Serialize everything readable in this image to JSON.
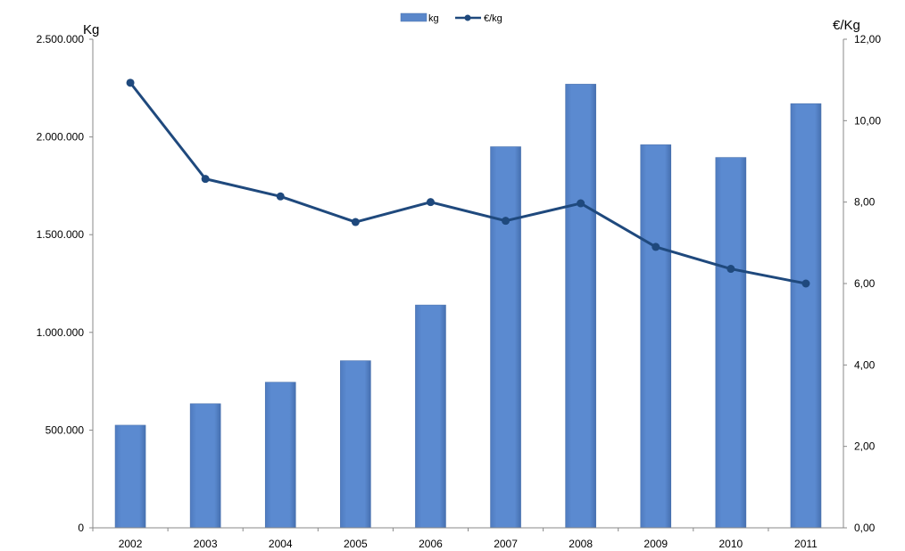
{
  "chart_data": {
    "type": "bar",
    "categories": [
      "2002",
      "2003",
      "2004",
      "2005",
      "2006",
      "2007",
      "2008",
      "2009",
      "2010",
      "2011"
    ],
    "series": [
      {
        "name": "kg",
        "type": "bar",
        "axis": "left",
        "color": "#5A87CA",
        "values": [
          525000,
          635000,
          745000,
          855000,
          1140000,
          1950000,
          2270000,
          1960000,
          1895000,
          2170000
        ]
      },
      {
        "name": "€/kg",
        "type": "line",
        "axis": "right",
        "color": "#1F497D",
        "values": [
          10.93,
          8.57,
          8.14,
          7.51,
          8.0,
          7.54,
          7.97,
          6.9,
          6.36,
          6.0
        ]
      }
    ],
    "ylabel": "Kg",
    "y2label": "€/Kg",
    "ylim": [
      0,
      2500000
    ],
    "y2lim": [
      0,
      12
    ],
    "yticks": [
      "0",
      "500.000",
      "1.000.000",
      "1.500.000",
      "2.000.000",
      "2.500.000"
    ],
    "y2ticks": [
      "0,00",
      "2,00",
      "4,00",
      "6,00",
      "8,00",
      "10,00",
      "12,00"
    ],
    "legend_position": "top-center",
    "grid": false
  }
}
